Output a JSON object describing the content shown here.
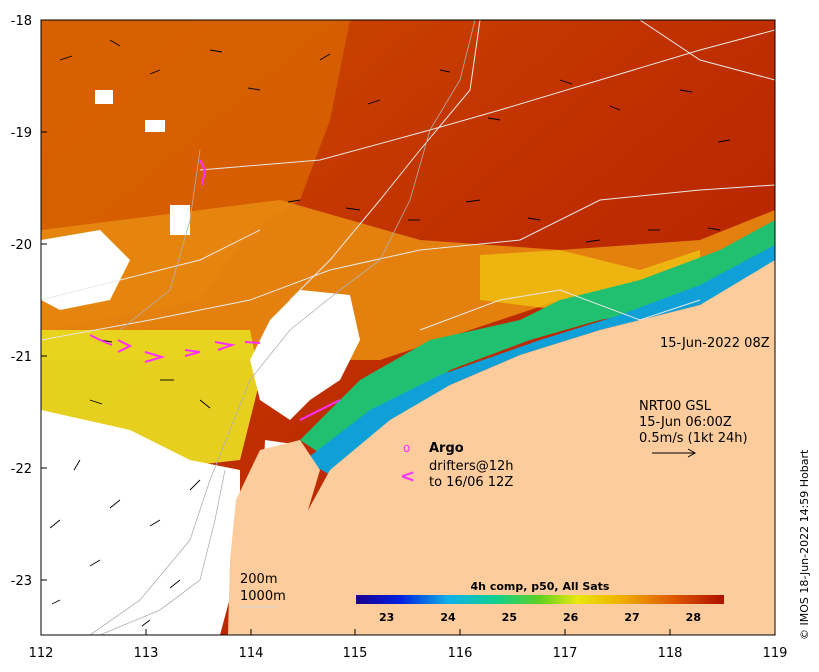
{
  "map": {
    "x_axis": {
      "min": 112,
      "max": 119,
      "ticks": [
        "112",
        "113",
        "114",
        "115",
        "116",
        "117",
        "118",
        "119"
      ]
    },
    "y_axis": {
      "min": -23.5,
      "max": -18,
      "ticks": [
        "-18",
        "-19",
        "-20",
        "-21",
        "-22",
        "-23"
      ]
    },
    "date_label": "15-Jun-2022 08Z",
    "current_legend": {
      "line1": "NRT00 GSL",
      "line2": "15-Jun 06:00Z",
      "line3": "0.5m/s (1kt 24h)"
    },
    "argo_legend": {
      "argo_label": "Argo",
      "drifters_line1": "drifters@12h",
      "drifters_line2": "to 16/06 12Z",
      "argo_symbol": "o",
      "drifter_symbol": "<"
    },
    "isobath_legend": {
      "line1": "200m",
      "line2": "1000m"
    },
    "colorbar": {
      "title": "4h comp, p50, All Sats",
      "min": 22.5,
      "max": 28.5,
      "ticks": [
        "23",
        "24",
        "25",
        "26",
        "27",
        "28"
      ]
    },
    "credit": "© IMOS 18-Jun-2022 14:59 Hobart",
    "colors": {
      "land": "#fccc9c",
      "sst_warm": "#b82000",
      "sst_mid": "#e07000",
      "sst_cool": "#f0d010",
      "sst_cold": "#10a0d0",
      "drifter": "#ff30ff",
      "isobath": "#d8d8d8"
    }
  }
}
